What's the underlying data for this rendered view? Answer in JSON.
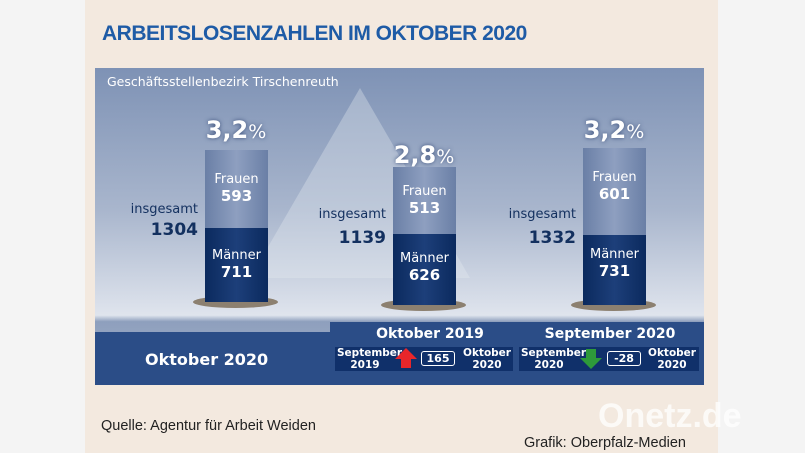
{
  "title": "ARBEITSLOSENZAHLEN IM OKTOBER 2020",
  "region": "Geschäftsstellenbezirk Tirschenreuth",
  "chart_data": {
    "type": "bar",
    "stacked": true,
    "columns": [
      {
        "pct": "3,2",
        "pct_sign": "%",
        "total_label": "insgesamt",
        "total": "1304",
        "frauen_label": "Frauen",
        "frauen": "593",
        "maenner_label": "Männer",
        "maenner": "711"
      },
      {
        "pct": "2,8",
        "pct_sign": "%",
        "total_label": "insgesamt",
        "total": "1139",
        "frauen_label": "Frauen",
        "frauen": "513",
        "maenner_label": "Männer",
        "maenner": "626"
      },
      {
        "pct": "3,2",
        "pct_sign": "%",
        "total_label": "insgesamt",
        "total": "1332",
        "frauen_label": "Frauen",
        "frauen": "601",
        "maenner_label": "Männer",
        "maenner": "731"
      }
    ],
    "categories": [
      "Oktober 2020",
      "Oktober 2019",
      "September 2020"
    ],
    "series": [
      {
        "name": "Frauen",
        "values": [
          593,
          513,
          601
        ]
      },
      {
        "name": "Männer",
        "values": [
          711,
          626,
          731
        ]
      }
    ]
  },
  "band": {
    "current": "Oktober 2020",
    "comparisons": [
      {
        "title": "Oktober 2019",
        "from1": "September",
        "from2": "2019",
        "change": "165",
        "direction": "up",
        "color": "#e8262a",
        "to1": "Oktober",
        "to2": "2020"
      },
      {
        "title": "September 2020",
        "from1": "September",
        "from2": "2020",
        "change": "-28",
        "direction": "down",
        "color": "#2e9a3a",
        "to1": "Oktober",
        "to2": "2020"
      }
    ]
  },
  "footer": {
    "source": "Quelle: Agentur für Arbeit Weiden",
    "credit": "Grafik: Oberpfalz-Medien",
    "watermark": "Onetz.de"
  }
}
